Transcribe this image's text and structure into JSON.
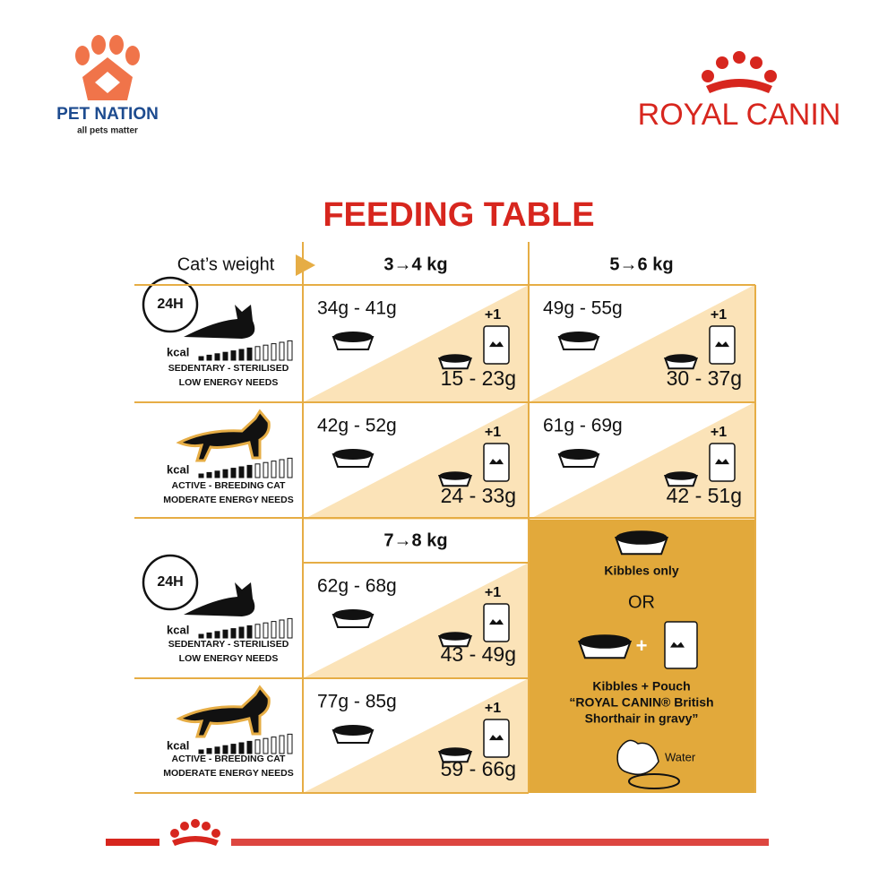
{
  "header": {
    "brand": "PET NATION",
    "tagline": "all pets matter",
    "logo": "ROYAL CANIN"
  },
  "title": "FEEDING TABLE",
  "table": {
    "weight_label": "Cat’s weight",
    "columns": [
      "3→4 kg",
      "5→6 kg",
      "7→8 kg"
    ],
    "rows": [
      {
        "clock": "24H",
        "kcal": "kcal",
        "activity": "SEDENTARY - STERILISED",
        "needs": "LOW ENERGY NEEDS",
        "cells": [
          {
            "kibbles": "34g - 41g",
            "pouch": "+1",
            "mixed": "15 - 23g"
          },
          {
            "kibbles": "49g - 55g",
            "pouch": "+1",
            "mixed": "30 - 37g"
          }
        ]
      },
      {
        "kcal": "kcal",
        "activity": "ACTIVE - BREEDING CAT",
        "needs": "MODERATE ENERGY NEEDS",
        "cells": [
          {
            "kibbles": "42g - 52g",
            "pouch": "+1",
            "mixed": "24 - 33g"
          },
          {
            "kibbles": "61g - 69g",
            "pouch": "+1",
            "mixed": "42 - 51g"
          }
        ]
      },
      {
        "clock": "24H",
        "kcal": "kcal",
        "activity": "SEDENTARY - STERILISED",
        "needs": "LOW ENERGY NEEDS",
        "cells": [
          {
            "kibbles": "62g - 68g",
            "pouch": "+1",
            "mixed": "43 - 49g"
          }
        ]
      },
      {
        "kcal": "kcal",
        "activity": "ACTIVE - BREEDING CAT",
        "needs": "MODERATE ENERGY NEEDS",
        "cells": [
          {
            "kibbles": "77g - 85g",
            "pouch": "+1",
            "mixed": "59 - 66g"
          }
        ]
      }
    ]
  },
  "legend": {
    "kibbles_only": "Kibbles only",
    "or": "OR",
    "plus": "+",
    "pouch_text": [
      "Kibbles + Pouch",
      "“ROYAL CANIN® British",
      "Shorthair in gravy”"
    ],
    "water": "Water"
  }
}
